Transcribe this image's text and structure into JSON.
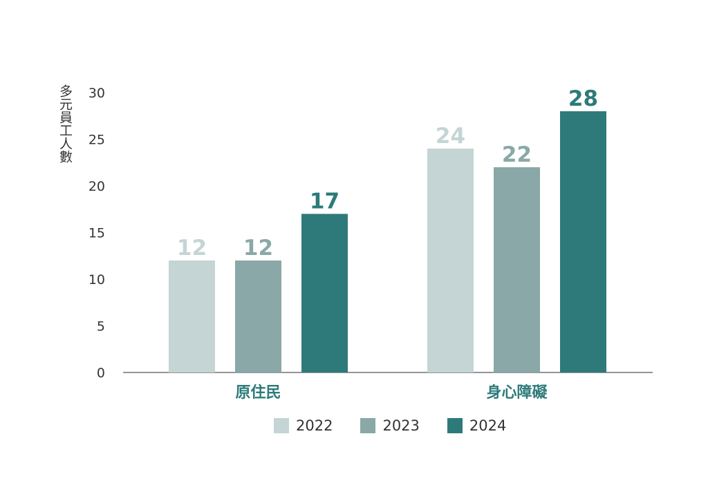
{
  "chart_data": {
    "type": "bar",
    "ylabel": "多元員工人數",
    "xlabel": "",
    "title": "",
    "categories": [
      "原住民",
      "身心障礙"
    ],
    "series": [
      {
        "name": "2022",
        "values": [
          12,
          24
        ],
        "color": "#c5d4d4"
      },
      {
        "name": "2023",
        "values": [
          12,
          22
        ],
        "color": "#8aa8a8"
      },
      {
        "name": "2024",
        "values": [
          17,
          28
        ],
        "color": "#2e7a7a"
      }
    ],
    "ylim": [
      0,
      30
    ],
    "yticks": [
      "0",
      "5",
      "10",
      "15",
      "20",
      "25",
      "30"
    ],
    "grid": false,
    "legend_position": "bottom"
  }
}
